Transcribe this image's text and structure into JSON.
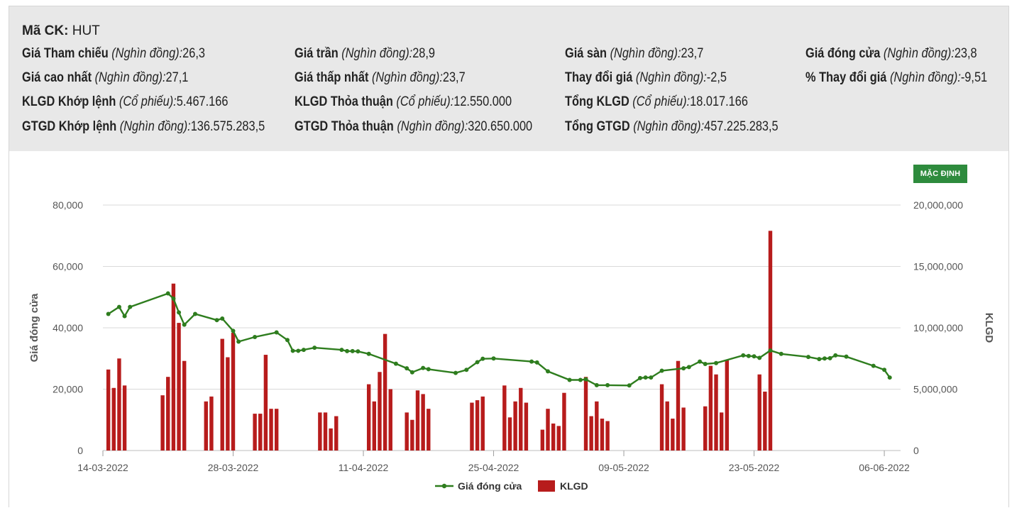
{
  "stock": {
    "code_label": "Mã CK:",
    "code": "HUT"
  },
  "info_rows": [
    [
      {
        "label": "Giá Tham chiếu",
        "unit": "(Nghìn đồng):",
        "value": "26,3"
      },
      {
        "label": "Giá trần",
        "unit": "(Nghìn đồng):",
        "value": "28,9"
      },
      {
        "label": "Giá sàn",
        "unit": "(Nghìn đồng):",
        "value": "23,7"
      },
      {
        "label": "Giá đóng cửa",
        "unit": "(Nghìn đồng):",
        "value": "23,8"
      }
    ],
    [
      {
        "label": "Giá cao nhất",
        "unit": "(Nghìn đồng):",
        "value": "27,1"
      },
      {
        "label": "Giá thấp nhất",
        "unit": "(Nghìn đồng):",
        "value": "23,7"
      },
      {
        "label": "Thay đổi giá",
        "unit": "(Nghìn đồng):",
        "value": "-2,5"
      },
      {
        "label": "% Thay đổi giá",
        "unit": "(Nghìn đồng):",
        "value": "-9,51"
      }
    ],
    [
      {
        "label": "KLGD Khớp lệnh",
        "unit": "(Cổ phiếu):",
        "value": "5.467.166"
      },
      {
        "label": "KLGD Thỏa thuận",
        "unit": "(Cổ phiếu):",
        "value": "12.550.000"
      },
      {
        "label": "Tổng KLGD",
        "unit": "(Cổ phiếu):",
        "value": "18.017.166"
      }
    ],
    [
      {
        "label": "GTGD Khớp lệnh",
        "unit": "(Nghìn đồng):",
        "value": "136.575.283,5"
      },
      {
        "label": "GTGD Thỏa thuận",
        "unit": "(Nghìn đồng):",
        "value": "320.650.000"
      },
      {
        "label": "Tổng GTGD",
        "unit": "(Nghìn đồng):",
        "value": "457.225.283,5"
      }
    ]
  ],
  "default_button": "MẶC ĐỊNH",
  "colors": {
    "line": "#2e7d1e",
    "bar": "#b71c1c",
    "grid": "#d9d9d9",
    "button": "#2e8b3d"
  },
  "chart_data": {
    "type": "bar+line",
    "x_tick_labels": [
      "14-03-2022",
      "28-03-2022",
      "11-04-2022",
      "25-04-2022",
      "09-05-2022",
      "23-05-2022",
      "06-06-2022"
    ],
    "y_left": {
      "label": "Giá đóng cửa",
      "ticks": [
        "0",
        "20,000",
        "40,000",
        "60,000",
        "80,000"
      ],
      "range": [
        0,
        80000
      ]
    },
    "y_right": {
      "label": "KLGD",
      "ticks": [
        "0",
        "5,000,000",
        "10,000,000",
        "15,000,000",
        "20,000,000"
      ],
      "range": [
        0,
        20000000
      ]
    },
    "legend": [
      "Giá đóng cửa",
      "KLGD"
    ],
    "series": [
      {
        "name": "Giá đóng cửa",
        "type": "line",
        "axis": "left",
        "points": [
          [
            1,
            44500
          ],
          [
            3,
            46800
          ],
          [
            4,
            43800
          ],
          [
            5,
            46800
          ],
          [
            12,
            51200
          ],
          [
            13,
            49500
          ],
          [
            14,
            45000
          ],
          [
            15,
            41000
          ],
          [
            17,
            44500
          ],
          [
            21,
            42500
          ],
          [
            22,
            43000
          ],
          [
            24,
            39000
          ],
          [
            25,
            35500
          ],
          [
            28,
            37000
          ],
          [
            32,
            38500
          ],
          [
            34,
            36000
          ],
          [
            35,
            32500
          ],
          [
            36,
            32500
          ],
          [
            37,
            32800
          ],
          [
            39,
            33500
          ],
          [
            44,
            32800
          ],
          [
            45,
            32400
          ],
          [
            46,
            32400
          ],
          [
            47,
            32300
          ],
          [
            49,
            31500
          ],
          [
            54,
            28300
          ],
          [
            56,
            26800
          ],
          [
            57,
            25500
          ],
          [
            59,
            26900
          ],
          [
            60,
            26500
          ],
          [
            65,
            25300
          ],
          [
            67,
            26300
          ],
          [
            69,
            28800
          ],
          [
            70,
            29900
          ],
          [
            72,
            30000
          ],
          [
            79,
            29000
          ],
          [
            80,
            28700
          ],
          [
            82,
            25800
          ],
          [
            86,
            23000
          ],
          [
            88,
            23000
          ],
          [
            89,
            23200
          ],
          [
            91,
            21300
          ],
          [
            93,
            21300
          ],
          [
            97,
            21200
          ],
          [
            99,
            23600
          ],
          [
            100,
            23800
          ],
          [
            101,
            23800
          ],
          [
            103,
            26000
          ],
          [
            107,
            26800
          ],
          [
            108,
            27200
          ],
          [
            110,
            29000
          ],
          [
            111,
            28200
          ],
          [
            113,
            28500
          ],
          [
            118,
            31000
          ],
          [
            119,
            30800
          ],
          [
            120,
            30700
          ],
          [
            121,
            30200
          ],
          [
            123,
            32600
          ],
          [
            125,
            31500
          ],
          [
            130,
            30500
          ],
          [
            132,
            29800
          ],
          [
            133,
            30000
          ],
          [
            134,
            30100
          ],
          [
            135,
            31000
          ],
          [
            137,
            30600
          ],
          [
            142,
            27600
          ],
          [
            144,
            26300
          ],
          [
            145,
            23800
          ]
        ]
      },
      {
        "name": "KLGD",
        "type": "bar",
        "axis": "right",
        "values": [
          [
            1,
            6600000
          ],
          [
            2,
            5100000
          ],
          [
            3,
            7500000
          ],
          [
            4,
            5300000
          ],
          [
            11,
            4500000
          ],
          [
            12,
            6000000
          ],
          [
            13,
            13600000
          ],
          [
            14,
            10400000
          ],
          [
            15,
            7300000
          ],
          [
            19,
            4000000
          ],
          [
            20,
            4400000
          ],
          [
            22,
            9100000
          ],
          [
            23,
            7600000
          ],
          [
            24,
            9600000
          ],
          [
            28,
            3000000
          ],
          [
            29,
            3000000
          ],
          [
            30,
            7800000
          ],
          [
            31,
            3400000
          ],
          [
            32,
            3400000
          ],
          [
            40,
            3100000
          ],
          [
            41,
            3100000
          ],
          [
            42,
            1800000
          ],
          [
            43,
            2800000
          ],
          [
            49,
            5400000
          ],
          [
            50,
            4000000
          ],
          [
            51,
            6400000
          ],
          [
            52,
            9500000
          ],
          [
            53,
            5000000
          ],
          [
            56,
            3100000
          ],
          [
            57,
            2500000
          ],
          [
            58,
            4900000
          ],
          [
            59,
            4600000
          ],
          [
            60,
            3400000
          ],
          [
            68,
            3900000
          ],
          [
            69,
            4100000
          ],
          [
            70,
            4400000
          ],
          [
            74,
            5300000
          ],
          [
            75,
            2700000
          ],
          [
            76,
            4000000
          ],
          [
            77,
            5100000
          ],
          [
            78,
            3900000
          ],
          [
            81,
            1700000
          ],
          [
            82,
            3400000
          ],
          [
            83,
            2200000
          ],
          [
            84,
            2000000
          ],
          [
            85,
            4700000
          ],
          [
            89,
            6000000
          ],
          [
            90,
            2800000
          ],
          [
            91,
            4000000
          ],
          [
            92,
            2600000
          ],
          [
            93,
            2400000
          ],
          [
            103,
            5400000
          ],
          [
            104,
            4000000
          ],
          [
            105,
            2600000
          ],
          [
            106,
            7300000
          ],
          [
            107,
            3500000
          ],
          [
            111,
            3600000
          ],
          [
            112,
            6900000
          ],
          [
            113,
            6200000
          ],
          [
            114,
            3100000
          ],
          [
            115,
            7400000
          ],
          [
            121,
            6200000
          ],
          [
            122,
            4800000
          ],
          [
            123,
            17900000
          ]
        ]
      }
    ]
  }
}
